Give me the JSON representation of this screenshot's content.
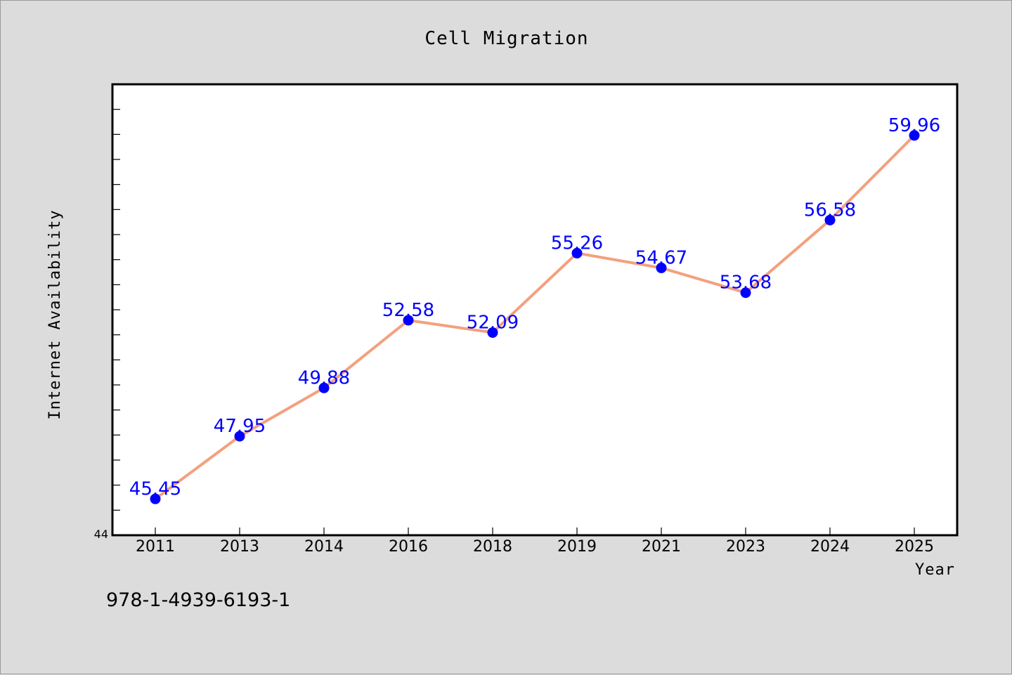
{
  "colors": {
    "background": "#dcdcdc",
    "plot_background": "#ffffff",
    "line": "#f4a07e",
    "marker": "#0000ff",
    "data_label": "#0000ff"
  },
  "footer_code": "978-1-4939-6193-1",
  "chart_data": {
    "type": "line",
    "title": "Cell Migration",
    "xlabel": "Year",
    "ylabel": "Internet Availability",
    "categories": [
      "2011",
      "2013",
      "2014",
      "2016",
      "2018",
      "2019",
      "2021",
      "2023",
      "2024",
      "2025"
    ],
    "series": [
      {
        "values": [
          45.45,
          47.95,
          49.88,
          52.58,
          52.09,
          55.26,
          54.67,
          53.68,
          56.58,
          59.96
        ],
        "labels": [
          "45.45",
          "47.95",
          "49.88",
          "52.58",
          "52.09",
          "55.26",
          "54.67",
          "53.68",
          "56.58",
          "59.96"
        ]
      }
    ],
    "ylim": [
      44,
      62
    ],
    "y_tick_labels": [
      "44"
    ],
    "grid": false,
    "legend": "none"
  }
}
